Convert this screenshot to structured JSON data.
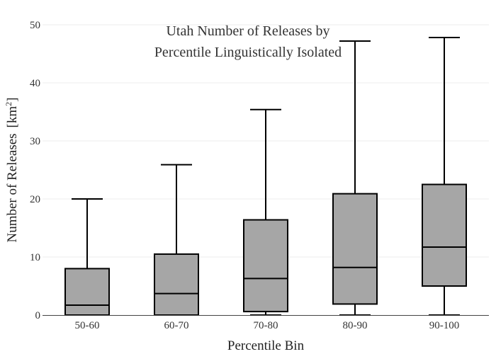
{
  "chart_data": {
    "type": "box",
    "title_lines": [
      "Utah Number of Releases by",
      "Percentile Linguistically Isolated"
    ],
    "xlabel": "Percentile Bin",
    "ylabel": "Number of Releases",
    "ylabel_unit_base": "[km",
    "ylabel_unit_sup": "2",
    "ylabel_unit_close": "]",
    "ylim": [
      0,
      50
    ],
    "yticks": [
      0,
      10,
      20,
      30,
      40,
      50
    ],
    "ytick_labels": [
      "0",
      "10",
      "20",
      "30",
      "40",
      "50"
    ],
    "grid": true,
    "categories": [
      "50-60",
      "60-70",
      "70-80",
      "80-90",
      "90-100"
    ],
    "boxes": [
      {
        "category": "50-60",
        "whisker_low": 0,
        "q1": 0,
        "median": 1.7,
        "q3": 8.0,
        "whisker_high": 20.0
      },
      {
        "category": "60-70",
        "whisker_low": 0,
        "q1": 0,
        "median": 3.7,
        "q3": 10.5,
        "whisker_high": 25.9
      },
      {
        "category": "70-80",
        "whisker_low": 0,
        "q1": 0.6,
        "median": 6.3,
        "q3": 16.4,
        "whisker_high": 35.4
      },
      {
        "category": "80-90",
        "whisker_low": 0,
        "q1": 1.9,
        "median": 8.2,
        "q3": 20.9,
        "whisker_high": 47.2
      },
      {
        "category": "90-100",
        "whisker_low": 0,
        "q1": 5.0,
        "median": 11.7,
        "q3": 22.5,
        "whisker_high": 47.8
      }
    ],
    "colors": {
      "box_fill": "#a6a6a6",
      "box_stroke": "#000000"
    }
  }
}
